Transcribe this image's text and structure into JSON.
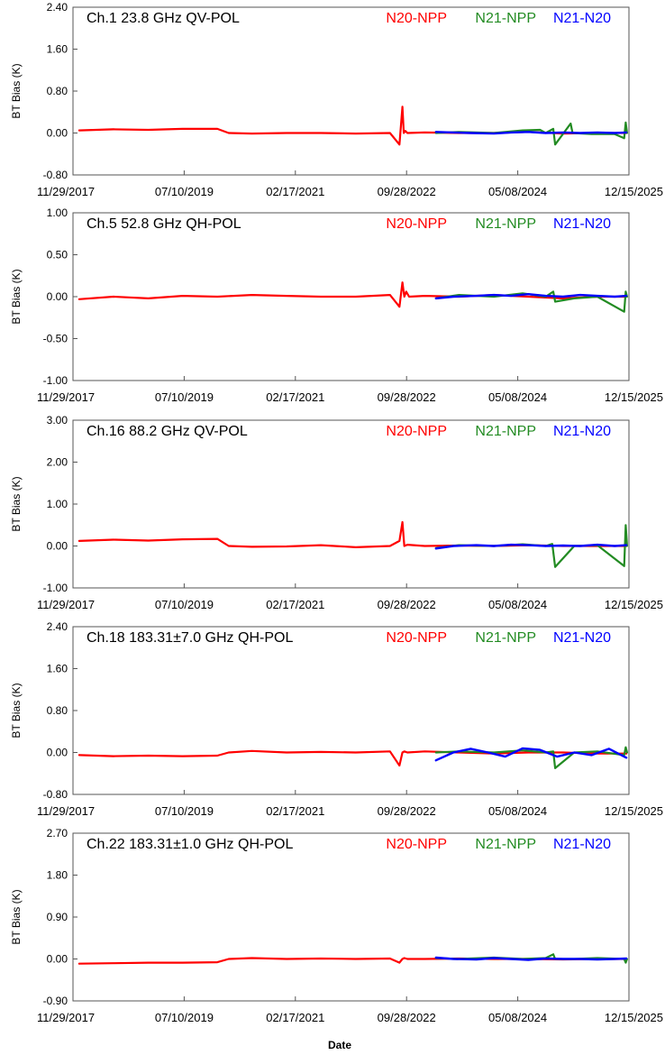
{
  "figure": {
    "xlabel": "Date",
    "ylabel": "BT Bias (K)",
    "legend": [
      {
        "name": "N20-NPP",
        "color": "#ff0000"
      },
      {
        "name": "N21-NPP",
        "color": "#228b22"
      },
      {
        "name": "N21-N20",
        "color": "#0000ff"
      }
    ],
    "x_ticks": [
      "11/29/2017",
      "07/10/2019",
      "02/17/2021",
      "09/28/2022",
      "05/08/2024",
      "12/15/2025"
    ],
    "x_range": [
      "2017-11-29",
      "2025-12-15"
    ]
  },
  "chart_data": [
    {
      "type": "line",
      "title": "Ch.1 23.8 GHz QV-POL",
      "ylim": [
        -0.8,
        2.4
      ],
      "y_ticks": [
        "2.40",
        "1.60",
        "0.80",
        "0.00",
        "-0.80"
      ],
      "y_tick_values": [
        2.4,
        1.6,
        0.8,
        0.0,
        -0.8
      ],
      "series": [
        {
          "name": "N20-NPP",
          "color": "#ff0000",
          "x": [
            "2018-01-01",
            "2018-07-01",
            "2019-01-01",
            "2019-07-01",
            "2020-01-01",
            "2020-03-01",
            "2020-07-01",
            "2021-01-01",
            "2021-07-01",
            "2022-01-01",
            "2022-07-01",
            "2022-08-20",
            "2022-09-05",
            "2022-09-12",
            "2022-09-20",
            "2022-10-01",
            "2023-01-01",
            "2023-07-01",
            "2024-01-01",
            "2024-07-01",
            "2025-01-01",
            "2025-07-01",
            "2025-12-01"
          ],
          "y": [
            0.05,
            0.07,
            0.06,
            0.08,
            0.08,
            0.0,
            -0.01,
            0.0,
            0.0,
            -0.01,
            0.0,
            -0.22,
            0.5,
            0.0,
            0.04,
            0.0,
            0.01,
            0.0,
            0.0,
            0.02,
            -0.01,
            0.0,
            0.0
          ]
        },
        {
          "name": "N21-NPP",
          "color": "#228b22",
          "x": [
            "2023-03-01",
            "2023-07-01",
            "2024-01-01",
            "2024-06-01",
            "2024-09-01",
            "2024-10-01",
            "2024-11-10",
            "2024-11-20",
            "2025-02-10",
            "2025-02-20",
            "2025-06-01",
            "2025-10-01",
            "2025-11-20",
            "2025-11-28",
            "2025-12-05"
          ],
          "y": [
            0.0,
            0.02,
            0.0,
            0.05,
            0.06,
            0.0,
            0.08,
            -0.22,
            0.18,
            0.0,
            -0.02,
            -0.02,
            -0.1,
            0.2,
            0.0
          ]
        },
        {
          "name": "N21-N20",
          "color": "#0000ff",
          "x": [
            "2023-03-01",
            "2023-06-01",
            "2023-09-01",
            "2024-01-01",
            "2024-04-01",
            "2024-07-01",
            "2024-10-01",
            "2025-01-01",
            "2025-04-01",
            "2025-07-01",
            "2025-10-01",
            "2025-12-01"
          ],
          "y": [
            0.02,
            0.01,
            0.0,
            -0.01,
            0.01,
            0.02,
            0.0,
            0.01,
            0.0,
            0.01,
            0.0,
            0.01
          ]
        }
      ]
    },
    {
      "type": "line",
      "title": "Ch.5 52.8 GHz QH-POL",
      "ylim": [
        -1.0,
        1.0
      ],
      "y_ticks": [
        "1.00",
        "0.50",
        "0.00",
        "-0.50",
        "-1.00"
      ],
      "y_tick_values": [
        1.0,
        0.5,
        0.0,
        -0.5,
        -1.0
      ],
      "series": [
        {
          "name": "N20-NPP",
          "color": "#ff0000",
          "x": [
            "2018-01-01",
            "2018-07-01",
            "2019-01-01",
            "2019-07-01",
            "2020-01-01",
            "2020-07-01",
            "2021-01-01",
            "2021-07-01",
            "2022-01-01",
            "2022-07-01",
            "2022-08-20",
            "2022-09-05",
            "2022-09-15",
            "2022-09-25",
            "2022-10-10",
            "2023-01-01",
            "2023-07-01",
            "2024-01-01",
            "2024-07-01",
            "2025-01-01",
            "2025-07-01",
            "2025-12-01"
          ],
          "y": [
            -0.03,
            0.0,
            -0.02,
            0.01,
            0.0,
            0.02,
            0.01,
            0.0,
            0.0,
            0.02,
            -0.12,
            0.17,
            0.0,
            0.06,
            0.0,
            0.01,
            0.0,
            0.02,
            0.0,
            -0.02,
            0.0,
            0.0
          ]
        },
        {
          "name": "N21-NPP",
          "color": "#228b22",
          "x": [
            "2023-03-01",
            "2023-07-01",
            "2024-01-01",
            "2024-06-01",
            "2024-10-01",
            "2024-11-10",
            "2024-11-20",
            "2025-03-01",
            "2025-07-01",
            "2025-11-20",
            "2025-11-28",
            "2025-12-05"
          ],
          "y": [
            -0.02,
            0.02,
            0.0,
            0.04,
            0.0,
            0.06,
            -0.06,
            -0.02,
            0.0,
            -0.18,
            0.06,
            0.0
          ]
        },
        {
          "name": "N21-N20",
          "color": "#0000ff",
          "x": [
            "2023-03-01",
            "2023-06-01",
            "2023-10-01",
            "2024-01-01",
            "2024-04-01",
            "2024-07-01",
            "2024-10-01",
            "2025-01-01",
            "2025-04-01",
            "2025-07-01",
            "2025-10-01",
            "2025-12-01"
          ],
          "y": [
            -0.02,
            0.0,
            0.01,
            0.02,
            0.01,
            0.03,
            0.01,
            0.0,
            0.02,
            0.01,
            0.0,
            0.01
          ]
        }
      ]
    },
    {
      "type": "line",
      "title": "Ch.16 88.2 GHz QV-POL",
      "ylim": [
        -1.0,
        3.0
      ],
      "y_ticks": [
        "3.00",
        "2.00",
        "1.00",
        "0.00",
        "-1.00"
      ],
      "y_tick_values": [
        3.0,
        2.0,
        1.0,
        0.0,
        -1.0
      ],
      "series": [
        {
          "name": "N20-NPP",
          "color": "#ff0000",
          "x": [
            "2018-01-01",
            "2018-07-01",
            "2019-01-01",
            "2019-07-01",
            "2020-01-01",
            "2020-03-01",
            "2020-07-01",
            "2021-01-01",
            "2021-07-01",
            "2022-01-01",
            "2022-07-01",
            "2022-08-20",
            "2022-09-05",
            "2022-09-15",
            "2022-10-01",
            "2023-01-01",
            "2023-07-01",
            "2024-01-01",
            "2024-07-01",
            "2025-01-01",
            "2025-07-01",
            "2025-12-01"
          ],
          "y": [
            0.12,
            0.15,
            0.13,
            0.16,
            0.17,
            0.0,
            -0.02,
            -0.01,
            0.02,
            -0.03,
            0.0,
            0.12,
            0.57,
            0.0,
            0.03,
            0.0,
            0.01,
            0.0,
            0.02,
            0.0,
            0.0,
            0.0
          ]
        },
        {
          "name": "N21-NPP",
          "color": "#228b22",
          "x": [
            "2023-03-01",
            "2023-07-01",
            "2024-01-01",
            "2024-06-01",
            "2024-10-01",
            "2024-11-05",
            "2024-11-20",
            "2025-03-01",
            "2025-07-01",
            "2025-11-20",
            "2025-11-28",
            "2025-12-05"
          ],
          "y": [
            -0.05,
            0.02,
            0.0,
            0.04,
            0.0,
            0.05,
            -0.5,
            0.0,
            0.02,
            -0.48,
            0.5,
            0.0
          ]
        },
        {
          "name": "N21-N20",
          "color": "#0000ff",
          "x": [
            "2023-03-01",
            "2023-06-01",
            "2023-10-01",
            "2024-01-01",
            "2024-04-01",
            "2024-07-01",
            "2024-10-01",
            "2025-01-01",
            "2025-04-01",
            "2025-07-01",
            "2025-10-01",
            "2025-12-01"
          ],
          "y": [
            -0.06,
            0.0,
            0.02,
            0.0,
            0.03,
            0.02,
            0.0,
            0.01,
            0.0,
            0.03,
            0.0,
            0.02
          ]
        }
      ]
    },
    {
      "type": "line",
      "title": "Ch.18 183.31±7.0 GHz QH-POL",
      "ylim": [
        -0.8,
        2.4
      ],
      "y_ticks": [
        "2.40",
        "1.60",
        "0.80",
        "0.00",
        "-0.80"
      ],
      "y_tick_values": [
        2.4,
        1.6,
        0.8,
        0.0,
        -0.8
      ],
      "series": [
        {
          "name": "N20-NPP",
          "color": "#ff0000",
          "x": [
            "2018-01-01",
            "2018-07-01",
            "2019-01-01",
            "2019-07-01",
            "2020-01-01",
            "2020-03-01",
            "2020-07-01",
            "2021-01-01",
            "2021-07-01",
            "2022-01-01",
            "2022-07-01",
            "2022-08-20",
            "2022-09-05",
            "2022-09-15",
            "2022-10-01",
            "2023-01-01",
            "2023-07-01",
            "2024-01-01",
            "2024-07-01",
            "2025-01-01",
            "2025-07-01",
            "2025-12-01"
          ],
          "y": [
            -0.05,
            -0.07,
            -0.06,
            -0.07,
            -0.06,
            0.0,
            0.03,
            0.0,
            0.01,
            0.0,
            0.02,
            -0.25,
            0.0,
            0.02,
            0.0,
            0.02,
            0.0,
            -0.02,
            0.0,
            0.0,
            -0.02,
            -0.02
          ]
        },
        {
          "name": "N21-NPP",
          "color": "#228b22",
          "x": [
            "2023-03-01",
            "2023-07-01",
            "2024-01-01",
            "2024-06-01",
            "2024-10-01",
            "2024-11-10",
            "2024-11-20",
            "2025-03-01",
            "2025-07-01",
            "2025-11-20",
            "2025-11-28",
            "2025-12-05"
          ],
          "y": [
            0.0,
            0.02,
            0.0,
            0.04,
            0.0,
            0.02,
            -0.3,
            0.0,
            0.02,
            -0.05,
            0.1,
            0.0
          ]
        },
        {
          "name": "N21-N20",
          "color": "#0000ff",
          "x": [
            "2023-03-01",
            "2023-06-01",
            "2023-09-01",
            "2023-12-01",
            "2024-03-01",
            "2024-06-01",
            "2024-09-01",
            "2024-12-01",
            "2025-03-01",
            "2025-06-01",
            "2025-09-01",
            "2025-12-01"
          ],
          "y": [
            -0.15,
            0.0,
            0.07,
            0.0,
            -0.08,
            0.08,
            0.05,
            -0.08,
            0.0,
            -0.05,
            0.07,
            -0.1
          ]
        }
      ]
    },
    {
      "type": "line",
      "title": "Ch.22 183.31±1.0 GHz QH-POL",
      "ylim": [
        -0.9,
        2.7
      ],
      "y_ticks": [
        "2.70",
        "1.80",
        "0.90",
        "0.00",
        "-0.90"
      ],
      "y_tick_values": [
        2.7,
        1.8,
        0.9,
        0.0,
        -0.9
      ],
      "series": [
        {
          "name": "N20-NPP",
          "color": "#ff0000",
          "x": [
            "2018-01-01",
            "2018-07-01",
            "2019-01-01",
            "2019-07-01",
            "2020-01-01",
            "2020-03-01",
            "2020-07-01",
            "2021-01-01",
            "2021-07-01",
            "2022-01-01",
            "2022-07-01",
            "2022-08-20",
            "2022-09-05",
            "2022-09-15",
            "2022-10-01",
            "2023-01-01",
            "2023-07-01",
            "2024-01-01",
            "2024-07-01",
            "2025-01-01",
            "2025-07-01",
            "2025-12-01"
          ],
          "y": [
            -0.1,
            -0.09,
            -0.08,
            -0.08,
            -0.07,
            0.0,
            0.02,
            0.0,
            0.01,
            0.0,
            0.01,
            -0.08,
            0.0,
            0.02,
            0.0,
            0.0,
            0.01,
            0.0,
            0.0,
            -0.01,
            0.0,
            0.0
          ]
        },
        {
          "name": "N21-NPP",
          "color": "#228b22",
          "x": [
            "2023-03-01",
            "2023-07-01",
            "2024-01-01",
            "2024-06-01",
            "2024-10-01",
            "2024-11-10",
            "2024-11-20",
            "2025-03-01",
            "2025-07-01",
            "2025-11-20",
            "2025-11-28",
            "2025-12-05"
          ],
          "y": [
            0.02,
            0.0,
            0.03,
            0.0,
            0.02,
            0.1,
            0.0,
            0.0,
            0.02,
            0.0,
            -0.08,
            0.0
          ]
        },
        {
          "name": "N21-N20",
          "color": "#0000ff",
          "x": [
            "2023-03-01",
            "2023-06-01",
            "2023-10-01",
            "2024-01-01",
            "2024-04-01",
            "2024-07-01",
            "2024-10-01",
            "2025-01-01",
            "2025-04-01",
            "2025-07-01",
            "2025-10-01",
            "2025-12-01"
          ],
          "y": [
            0.03,
            0.0,
            -0.01,
            0.02,
            0.0,
            -0.02,
            0.01,
            0.0,
            0.0,
            -0.01,
            0.0,
            0.01
          ]
        }
      ]
    }
  ]
}
